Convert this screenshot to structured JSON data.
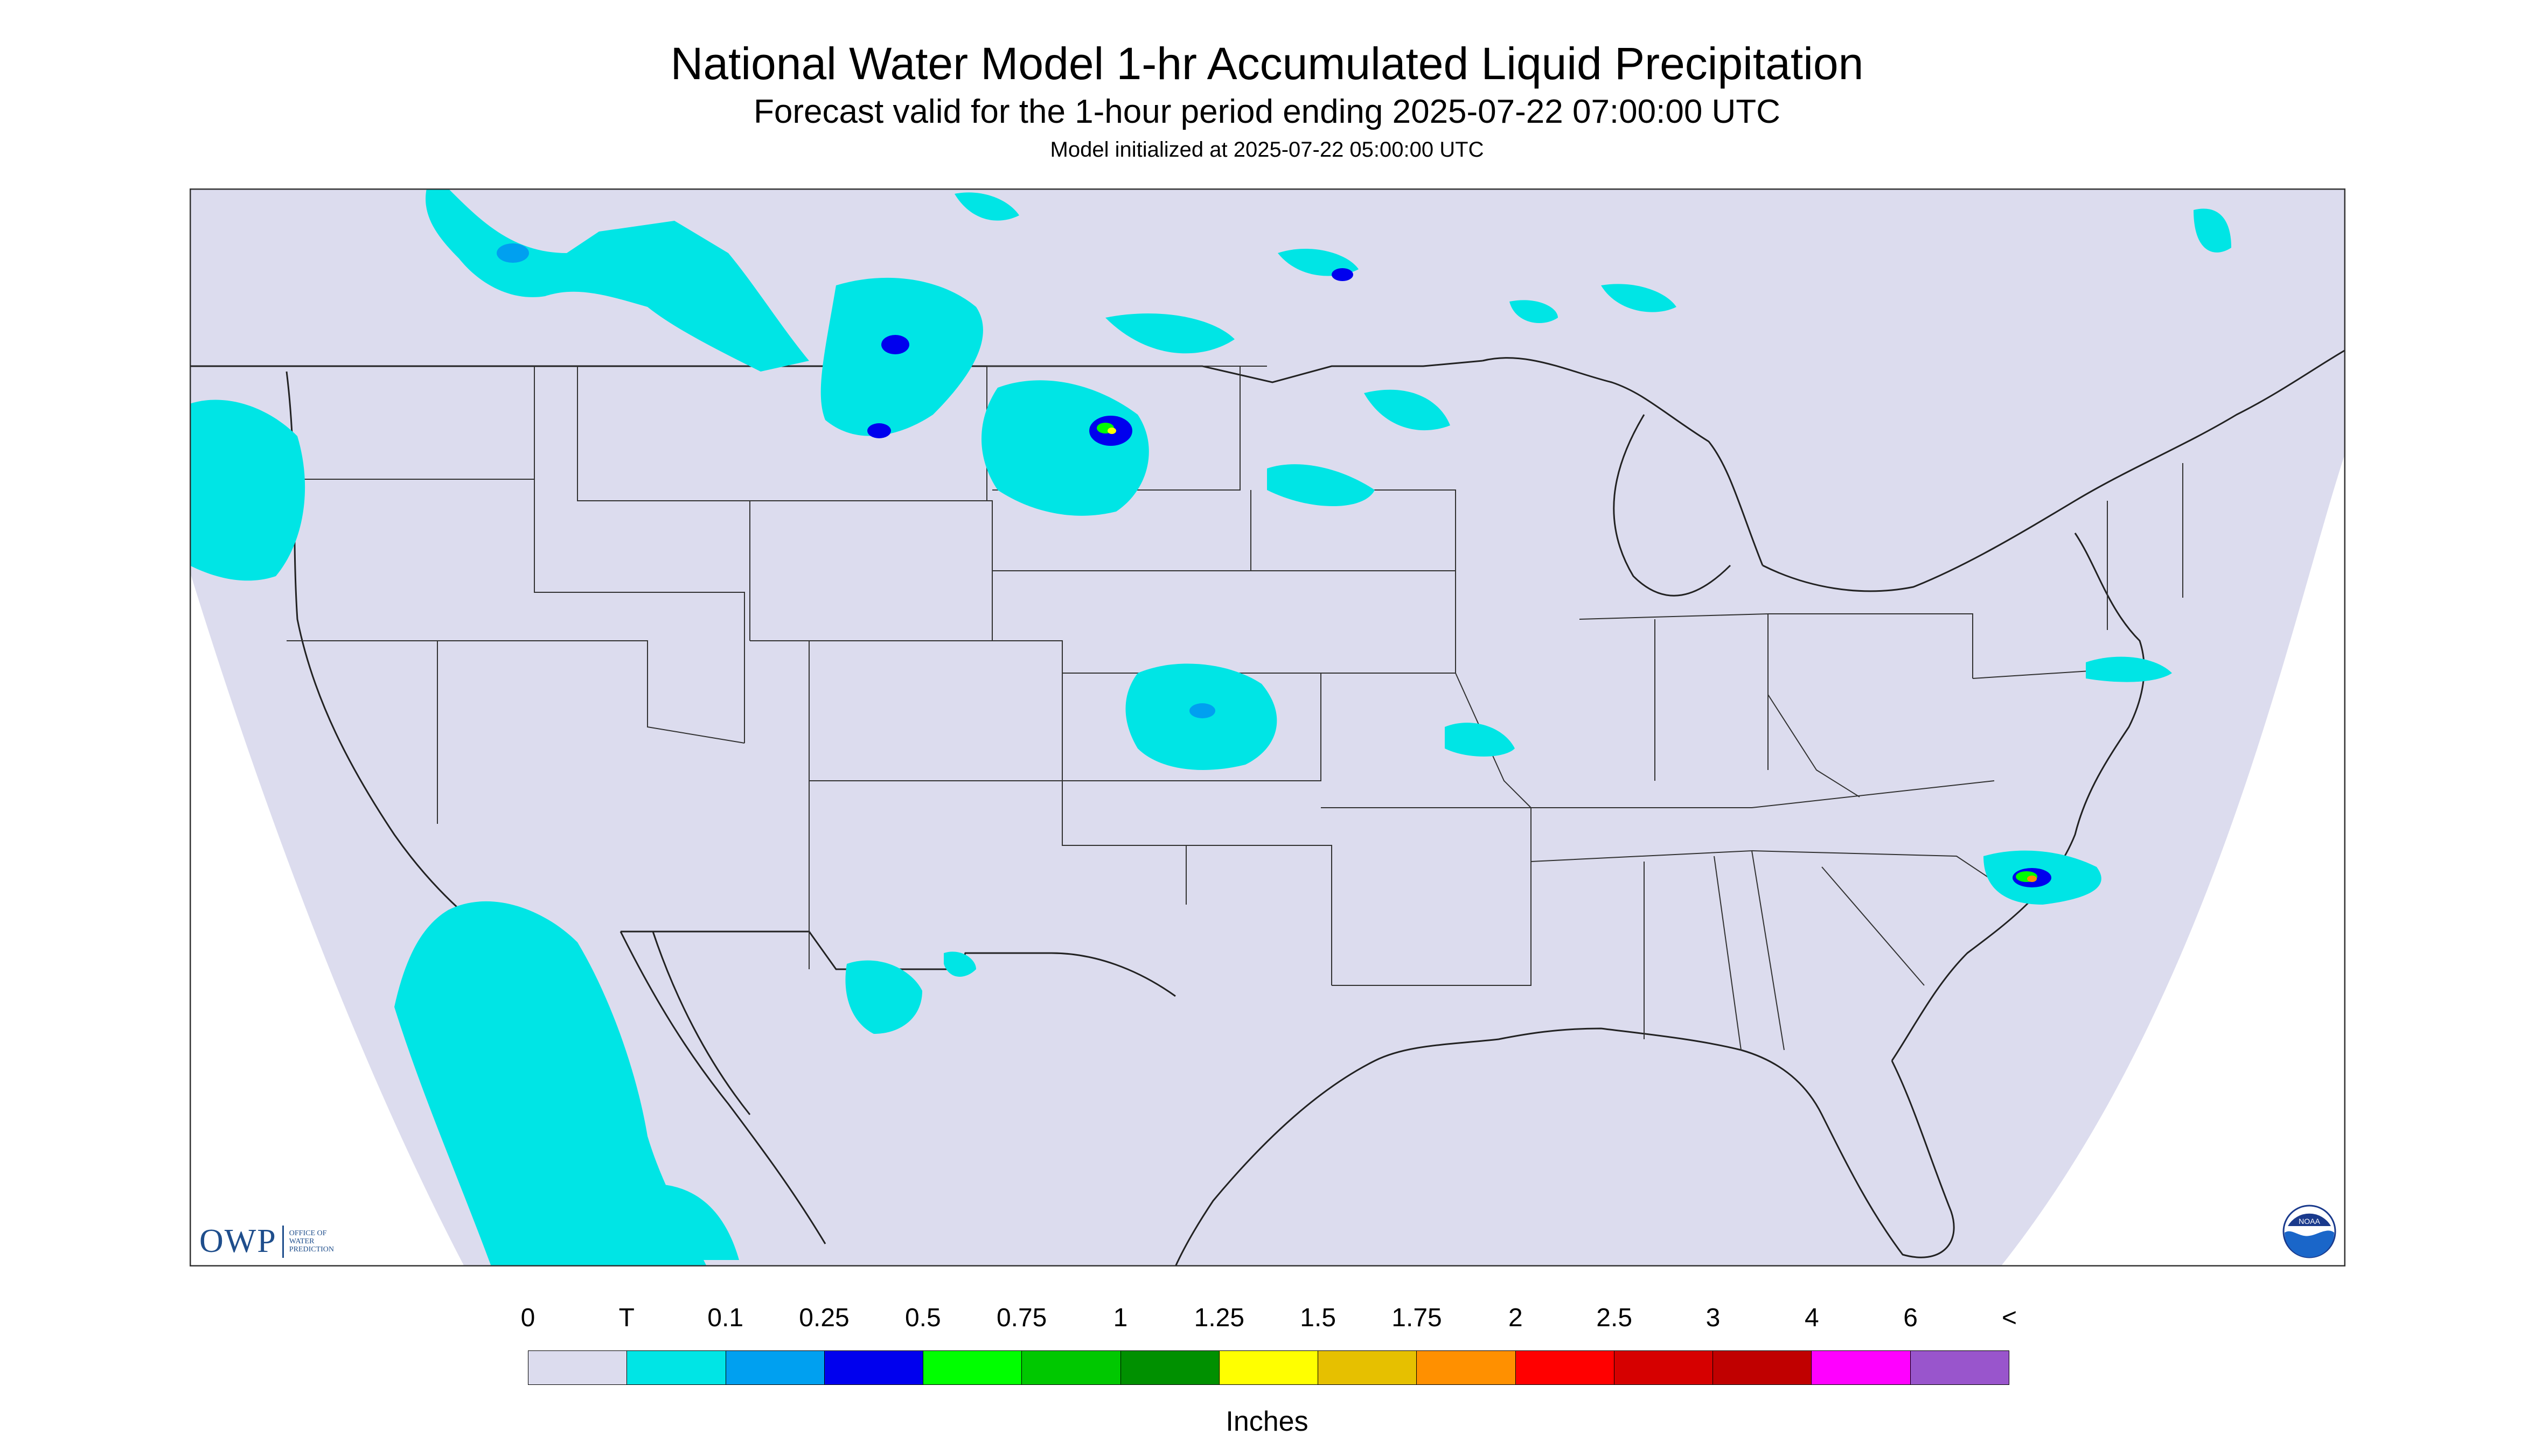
{
  "header": {
    "title": "National Water Model 1-hr Accumulated Liquid Precipitation",
    "subtitle": "Forecast valid for the 1-hour period ending 2025-07-22 07:00:00 UTC",
    "init_line": "Model initialized at 2025-07-22 05:00:00 UTC"
  },
  "logos": {
    "owp_mark": "OWP",
    "owp_text": "OFFICE OF\nWATER\nPREDICTION",
    "noaa": "NOAA"
  },
  "map": {
    "background": "#dcdcee",
    "outside": "#ffffff",
    "light_rain": "#00e5e5",
    "features": [
      {
        "name": "pacific-northwest-coast",
        "level": "T"
      },
      {
        "name": "northern-rockies",
        "level": "0.1"
      },
      {
        "name": "montana-band",
        "level": "0.25"
      },
      {
        "name": "south-dakota-cell",
        "level": "1.25"
      },
      {
        "name": "kansas-cell",
        "level": "0.1"
      },
      {
        "name": "baja-pacific",
        "level": "T"
      },
      {
        "name": "new-mexico",
        "level": "T"
      },
      {
        "name": "kentucky",
        "level": "T"
      },
      {
        "name": "atlantic-offshore",
        "level": "1.75"
      }
    ]
  },
  "legend": {
    "labels": [
      "0",
      "T",
      "0.1",
      "0.25",
      "0.5",
      "0.75",
      "1",
      "1.25",
      "1.5",
      "1.75",
      "2",
      "2.5",
      "3",
      "4",
      "6",
      "<"
    ],
    "colors": [
      "#dcdcee",
      "#00e5e5",
      "#00a0f0",
      "#0000ee",
      "#00ff00",
      "#00c800",
      "#009000",
      "#ffff00",
      "#e6c000",
      "#ff9000",
      "#ff0000",
      "#d60000",
      "#c00000",
      "#ff00ff",
      "#9955cc"
    ],
    "units": "Inches"
  }
}
